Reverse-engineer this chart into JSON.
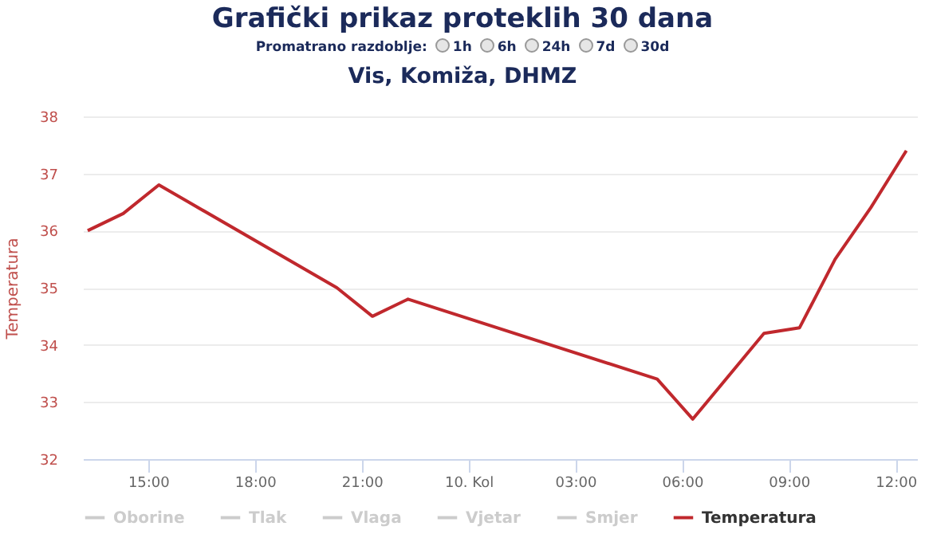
{
  "chart_data": {
    "type": "line",
    "title": "Grafički prikaz proteklih 30 dana",
    "subtitle": "Vis, Komiža, DHMZ",
    "annotations": [
      "Promatrano razdoblje:",
      "1h",
      "6h",
      "24h",
      "7d",
      "30d"
    ],
    "ylabel": "Temperatura",
    "x": [
      "--08-09T13:18",
      "--08-09T14:18",
      "--08-09T15:18",
      "--08-09T20:18",
      "--08-09T21:18",
      "--08-09T22:18",
      "--08-10T05:18",
      "--08-10T06:18",
      "--08-10T08:18",
      "--08-10T09:18",
      "--08-10T10:18",
      "--08-10T11:18",
      "--08-10T12:18"
    ],
    "series": [
      {
        "name": "Oborine",
        "color": "#cccccc",
        "values": [
          null,
          null,
          null,
          null,
          null,
          null,
          null,
          null,
          null,
          null,
          null,
          null,
          null
        ]
      },
      {
        "name": "Tlak",
        "color": "#cccccc",
        "values": [
          null,
          null,
          null,
          null,
          null,
          null,
          null,
          null,
          null,
          null,
          null,
          null,
          null
        ]
      },
      {
        "name": "Vlaga",
        "color": "#cccccc",
        "values": [
          null,
          null,
          null,
          null,
          null,
          null,
          null,
          null,
          null,
          null,
          null,
          null,
          null
        ]
      },
      {
        "name": "Vjetar",
        "color": "#cccccc",
        "values": [
          null,
          null,
          null,
          null,
          null,
          null,
          null,
          null,
          null,
          null,
          null,
          null,
          null
        ]
      },
      {
        "name": "Smjer",
        "color": "#cccccc",
        "values": [
          null,
          null,
          null,
          null,
          null,
          null,
          null,
          null,
          null,
          null,
          null,
          null,
          null
        ]
      },
      {
        "name": "Temperatura",
        "color": "#c0282d",
        "values": [
          36.0,
          36.3,
          36.8,
          35.0,
          34.5,
          34.8,
          33.4,
          32.7,
          34.2,
          34.3,
          35.5,
          36.4,
          37.4
        ]
      }
    ],
    "xlim": [
      "--08-09T13:10",
      "--08-10T12:36"
    ],
    "xticks": [
      {
        "value": "--08-09T15:00",
        "label": "15:00"
      },
      {
        "value": "--08-09T18:00",
        "label": "18:00"
      },
      {
        "value": "--08-09T21:00",
        "label": "21:00"
      },
      {
        "value": "--08-10T00:00",
        "label": "10. Kol"
      },
      {
        "value": "--08-10T03:00",
        "label": "03:00"
      },
      {
        "value": "--08-10T06:00",
        "label": "06:00"
      },
      {
        "value": "--08-10T09:00",
        "label": "09:00"
      },
      {
        "value": "--08-10T12:00",
        "label": "12:00"
      }
    ],
    "ylim": [
      32,
      38
    ],
    "yticks": [
      32,
      33,
      34,
      35,
      36,
      37,
      38
    ],
    "grid": "y",
    "legend": "bottom",
    "marker": "none",
    "line_style": "solid"
  }
}
